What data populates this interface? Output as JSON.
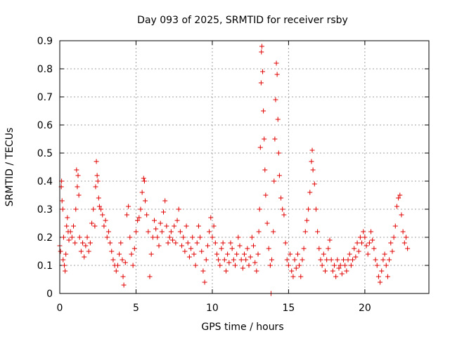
{
  "chart_data": {
    "type": "scatter",
    "title": "Day 093 of 2025, SRMTID for receiver rsby",
    "xlabel": "GPS time / hours",
    "ylabel": "SRMTID / TECUs",
    "xlim": [
      0,
      24.2
    ],
    "ylim": [
      0,
      0.9
    ],
    "xticks": [
      0,
      5,
      10,
      15,
      20
    ],
    "yticks": [
      0,
      0.1,
      0.2,
      0.3,
      0.4,
      0.5,
      0.6,
      0.7,
      0.8,
      0.9
    ],
    "xtick_labels": [
      "0",
      "5",
      "10",
      "15",
      "20"
    ],
    "ytick_labels": [
      "0",
      "0.1",
      "0.2",
      "0.3",
      "0.4",
      "0.5",
      "0.6",
      "0.7",
      "0.8",
      "0.9"
    ],
    "grid": true,
    "marker": "+",
    "color": "#e00000",
    "series": [
      {
        "name": "SRMTID",
        "points": [
          [
            0.0,
            0.17
          ],
          [
            0.05,
            0.15
          ],
          [
            0.1,
            0.38
          ],
          [
            0.12,
            0.4
          ],
          [
            0.15,
            0.33
          ],
          [
            0.2,
            0.3
          ],
          [
            0.22,
            0.12
          ],
          [
            0.25,
            0.2
          ],
          [
            0.3,
            0.1
          ],
          [
            0.35,
            0.08
          ],
          [
            0.4,
            0.14
          ],
          [
            0.45,
            0.24
          ],
          [
            0.5,
            0.27
          ],
          [
            0.55,
            0.22
          ],
          [
            0.6,
            0.19
          ],
          [
            0.7,
            0.22
          ],
          [
            0.8,
            0.2
          ],
          [
            0.9,
            0.24
          ],
          [
            1.0,
            0.18
          ],
          [
            1.05,
            0.3
          ],
          [
            1.1,
            0.44
          ],
          [
            1.15,
            0.38
          ],
          [
            1.2,
            0.42
          ],
          [
            1.25,
            0.35
          ],
          [
            1.3,
            0.2
          ],
          [
            1.4,
            0.15
          ],
          [
            1.5,
            0.18
          ],
          [
            1.6,
            0.13
          ],
          [
            1.7,
            0.17
          ],
          [
            1.8,
            0.2
          ],
          [
            1.9,
            0.15
          ],
          [
            2.0,
            0.18
          ],
          [
            2.1,
            0.25
          ],
          [
            2.2,
            0.3
          ],
          [
            2.3,
            0.24
          ],
          [
            2.35,
            0.38
          ],
          [
            2.4,
            0.47
          ],
          [
            2.45,
            0.42
          ],
          [
            2.5,
            0.4
          ],
          [
            2.55,
            0.34
          ],
          [
            2.6,
            0.31
          ],
          [
            2.7,
            0.3
          ],
          [
            2.8,
            0.28
          ],
          [
            2.9,
            0.24
          ],
          [
            3.0,
            0.26
          ],
          [
            3.1,
            0.2
          ],
          [
            3.2,
            0.22
          ],
          [
            3.3,
            0.18
          ],
          [
            3.4,
            0.15
          ],
          [
            3.5,
            0.12
          ],
          [
            3.6,
            0.1
          ],
          [
            3.7,
            0.08
          ],
          [
            3.8,
            0.1
          ],
          [
            3.9,
            0.14
          ],
          [
            4.0,
            0.18
          ],
          [
            4.1,
            0.12
          ],
          [
            4.15,
            0.06
          ],
          [
            4.2,
            0.03
          ],
          [
            4.3,
            0.11
          ],
          [
            4.4,
            0.28
          ],
          [
            4.5,
            0.31
          ],
          [
            4.6,
            0.2
          ],
          [
            4.7,
            0.14
          ],
          [
            4.8,
            0.1
          ],
          [
            4.9,
            0.16
          ],
          [
            5.0,
            0.22
          ],
          [
            5.1,
            0.26
          ],
          [
            5.2,
            0.27
          ],
          [
            5.3,
            0.3
          ],
          [
            5.4,
            0.36
          ],
          [
            5.5,
            0.41
          ],
          [
            5.55,
            0.4
          ],
          [
            5.6,
            0.33
          ],
          [
            5.7,
            0.28
          ],
          [
            5.8,
            0.22
          ],
          [
            5.9,
            0.06
          ],
          [
            6.0,
            0.14
          ],
          [
            6.1,
            0.2
          ],
          [
            6.2,
            0.26
          ],
          [
            6.3,
            0.23
          ],
          [
            6.4,
            0.2
          ],
          [
            6.5,
            0.17
          ],
          [
            6.6,
            0.25
          ],
          [
            6.7,
            0.22
          ],
          [
            6.8,
            0.29
          ],
          [
            6.9,
            0.33
          ],
          [
            7.0,
            0.24
          ],
          [
            7.1,
            0.18
          ],
          [
            7.2,
            0.2
          ],
          [
            7.3,
            0.22
          ],
          [
            7.4,
            0.19
          ],
          [
            7.5,
            0.24
          ],
          [
            7.6,
            0.18
          ],
          [
            7.7,
            0.26
          ],
          [
            7.8,
            0.3
          ],
          [
            7.9,
            0.22
          ],
          [
            8.0,
            0.17
          ],
          [
            8.1,
            0.2
          ],
          [
            8.2,
            0.15
          ],
          [
            8.3,
            0.24
          ],
          [
            8.4,
            0.18
          ],
          [
            8.5,
            0.13
          ],
          [
            8.6,
            0.16
          ],
          [
            8.7,
            0.2
          ],
          [
            8.8,
            0.14
          ],
          [
            8.9,
            0.1
          ],
          [
            9.0,
            0.18
          ],
          [
            9.1,
            0.24
          ],
          [
            9.2,
            0.2
          ],
          [
            9.3,
            0.15
          ],
          [
            9.4,
            0.08
          ],
          [
            9.5,
            0.04
          ],
          [
            9.6,
            0.12
          ],
          [
            9.7,
            0.17
          ],
          [
            9.8,
            0.22
          ],
          [
            9.9,
            0.27
          ],
          [
            10.0,
            0.2
          ],
          [
            10.1,
            0.24
          ],
          [
            10.2,
            0.18
          ],
          [
            10.3,
            0.14
          ],
          [
            10.4,
            0.12
          ],
          [
            10.5,
            0.1
          ],
          [
            10.6,
            0.16
          ],
          [
            10.7,
            0.18
          ],
          [
            10.8,
            0.12
          ],
          [
            10.9,
            0.08
          ],
          [
            11.0,
            0.14
          ],
          [
            11.1,
            0.11
          ],
          [
            11.2,
            0.18
          ],
          [
            11.3,
            0.16
          ],
          [
            11.4,
            0.12
          ],
          [
            11.5,
            0.1
          ],
          [
            11.6,
            0.14
          ],
          [
            11.7,
            0.2
          ],
          [
            11.8,
            0.17
          ],
          [
            11.9,
            0.12
          ],
          [
            12.0,
            0.09
          ],
          [
            12.1,
            0.14
          ],
          [
            12.2,
            0.12
          ],
          [
            12.3,
            0.16
          ],
          [
            12.4,
            0.1
          ],
          [
            12.5,
            0.13
          ],
          [
            12.6,
            0.2
          ],
          [
            12.7,
            0.17
          ],
          [
            12.8,
            0.11
          ],
          [
            12.9,
            0.08
          ],
          [
            13.0,
            0.14
          ],
          [
            13.05,
            0.22
          ],
          [
            13.1,
            0.3
          ],
          [
            13.15,
            0.52
          ],
          [
            13.2,
            0.75
          ],
          [
            13.22,
            0.86
          ],
          [
            13.25,
            0.88
          ],
          [
            13.3,
            0.79
          ],
          [
            13.35,
            0.65
          ],
          [
            13.4,
            0.55
          ],
          [
            13.45,
            0.44
          ],
          [
            13.5,
            0.35
          ],
          [
            13.6,
            0.25
          ],
          [
            13.7,
            0.16
          ],
          [
            13.8,
            0.1
          ],
          [
            13.85,
            0.0
          ],
          [
            13.9,
            0.12
          ],
          [
            14.0,
            0.22
          ],
          [
            14.05,
            0.4
          ],
          [
            14.1,
            0.55
          ],
          [
            14.15,
            0.69
          ],
          [
            14.2,
            0.82
          ],
          [
            14.25,
            0.78
          ],
          [
            14.3,
            0.62
          ],
          [
            14.35,
            0.5
          ],
          [
            14.4,
            0.42
          ],
          [
            14.5,
            0.34
          ],
          [
            14.6,
            0.3
          ],
          [
            14.7,
            0.28
          ],
          [
            14.8,
            0.18
          ],
          [
            14.9,
            0.12
          ],
          [
            15.0,
            0.1
          ],
          [
            15.1,
            0.14
          ],
          [
            15.2,
            0.08
          ],
          [
            15.3,
            0.06
          ],
          [
            15.4,
            0.12
          ],
          [
            15.5,
            0.09
          ],
          [
            15.6,
            0.14
          ],
          [
            15.7,
            0.1
          ],
          [
            15.8,
            0.06
          ],
          [
            15.9,
            0.12
          ],
          [
            16.0,
            0.16
          ],
          [
            16.1,
            0.22
          ],
          [
            16.2,
            0.26
          ],
          [
            16.3,
            0.3
          ],
          [
            16.4,
            0.36
          ],
          [
            16.5,
            0.47
          ],
          [
            16.55,
            0.51
          ],
          [
            16.6,
            0.44
          ],
          [
            16.7,
            0.39
          ],
          [
            16.8,
            0.3
          ],
          [
            16.9,
            0.22
          ],
          [
            17.0,
            0.16
          ],
          [
            17.1,
            0.12
          ],
          [
            17.2,
            0.1
          ],
          [
            17.3,
            0.14
          ],
          [
            17.4,
            0.08
          ],
          [
            17.5,
            0.12
          ],
          [
            17.6,
            0.16
          ],
          [
            17.7,
            0.19
          ],
          [
            17.8,
            0.12
          ],
          [
            17.9,
            0.08
          ],
          [
            18.0,
            0.1
          ],
          [
            18.1,
            0.06
          ],
          [
            18.2,
            0.12
          ],
          [
            18.3,
            0.09
          ],
          [
            18.4,
            0.1
          ],
          [
            18.5,
            0.07
          ],
          [
            18.6,
            0.12
          ],
          [
            18.7,
            0.1
          ],
          [
            18.8,
            0.08
          ],
          [
            18.9,
            0.12
          ],
          [
            19.0,
            0.14
          ],
          [
            19.1,
            0.1
          ],
          [
            19.2,
            0.12
          ],
          [
            19.3,
            0.16
          ],
          [
            19.4,
            0.13
          ],
          [
            19.5,
            0.18
          ],
          [
            19.6,
            0.15
          ],
          [
            19.7,
            0.2
          ],
          [
            19.8,
            0.18
          ],
          [
            19.9,
            0.22
          ],
          [
            20.0,
            0.2
          ],
          [
            20.1,
            0.17
          ],
          [
            20.2,
            0.14
          ],
          [
            20.3,
            0.18
          ],
          [
            20.4,
            0.22
          ],
          [
            20.5,
            0.19
          ],
          [
            20.6,
            0.16
          ],
          [
            20.7,
            0.12
          ],
          [
            20.8,
            0.1
          ],
          [
            20.9,
            0.06
          ],
          [
            21.0,
            0.04
          ],
          [
            21.1,
            0.08
          ],
          [
            21.2,
            0.12
          ],
          [
            21.3,
            0.14
          ],
          [
            21.4,
            0.1
          ],
          [
            21.5,
            0.06
          ],
          [
            21.6,
            0.12
          ],
          [
            21.7,
            0.18
          ],
          [
            21.8,
            0.15
          ],
          [
            21.9,
            0.2
          ],
          [
            22.0,
            0.24
          ],
          [
            22.1,
            0.31
          ],
          [
            22.2,
            0.34
          ],
          [
            22.3,
            0.35
          ],
          [
            22.4,
            0.28
          ],
          [
            22.5,
            0.22
          ],
          [
            22.6,
            0.18
          ],
          [
            22.7,
            0.2
          ],
          [
            22.8,
            0.16
          ]
        ]
      }
    ]
  }
}
